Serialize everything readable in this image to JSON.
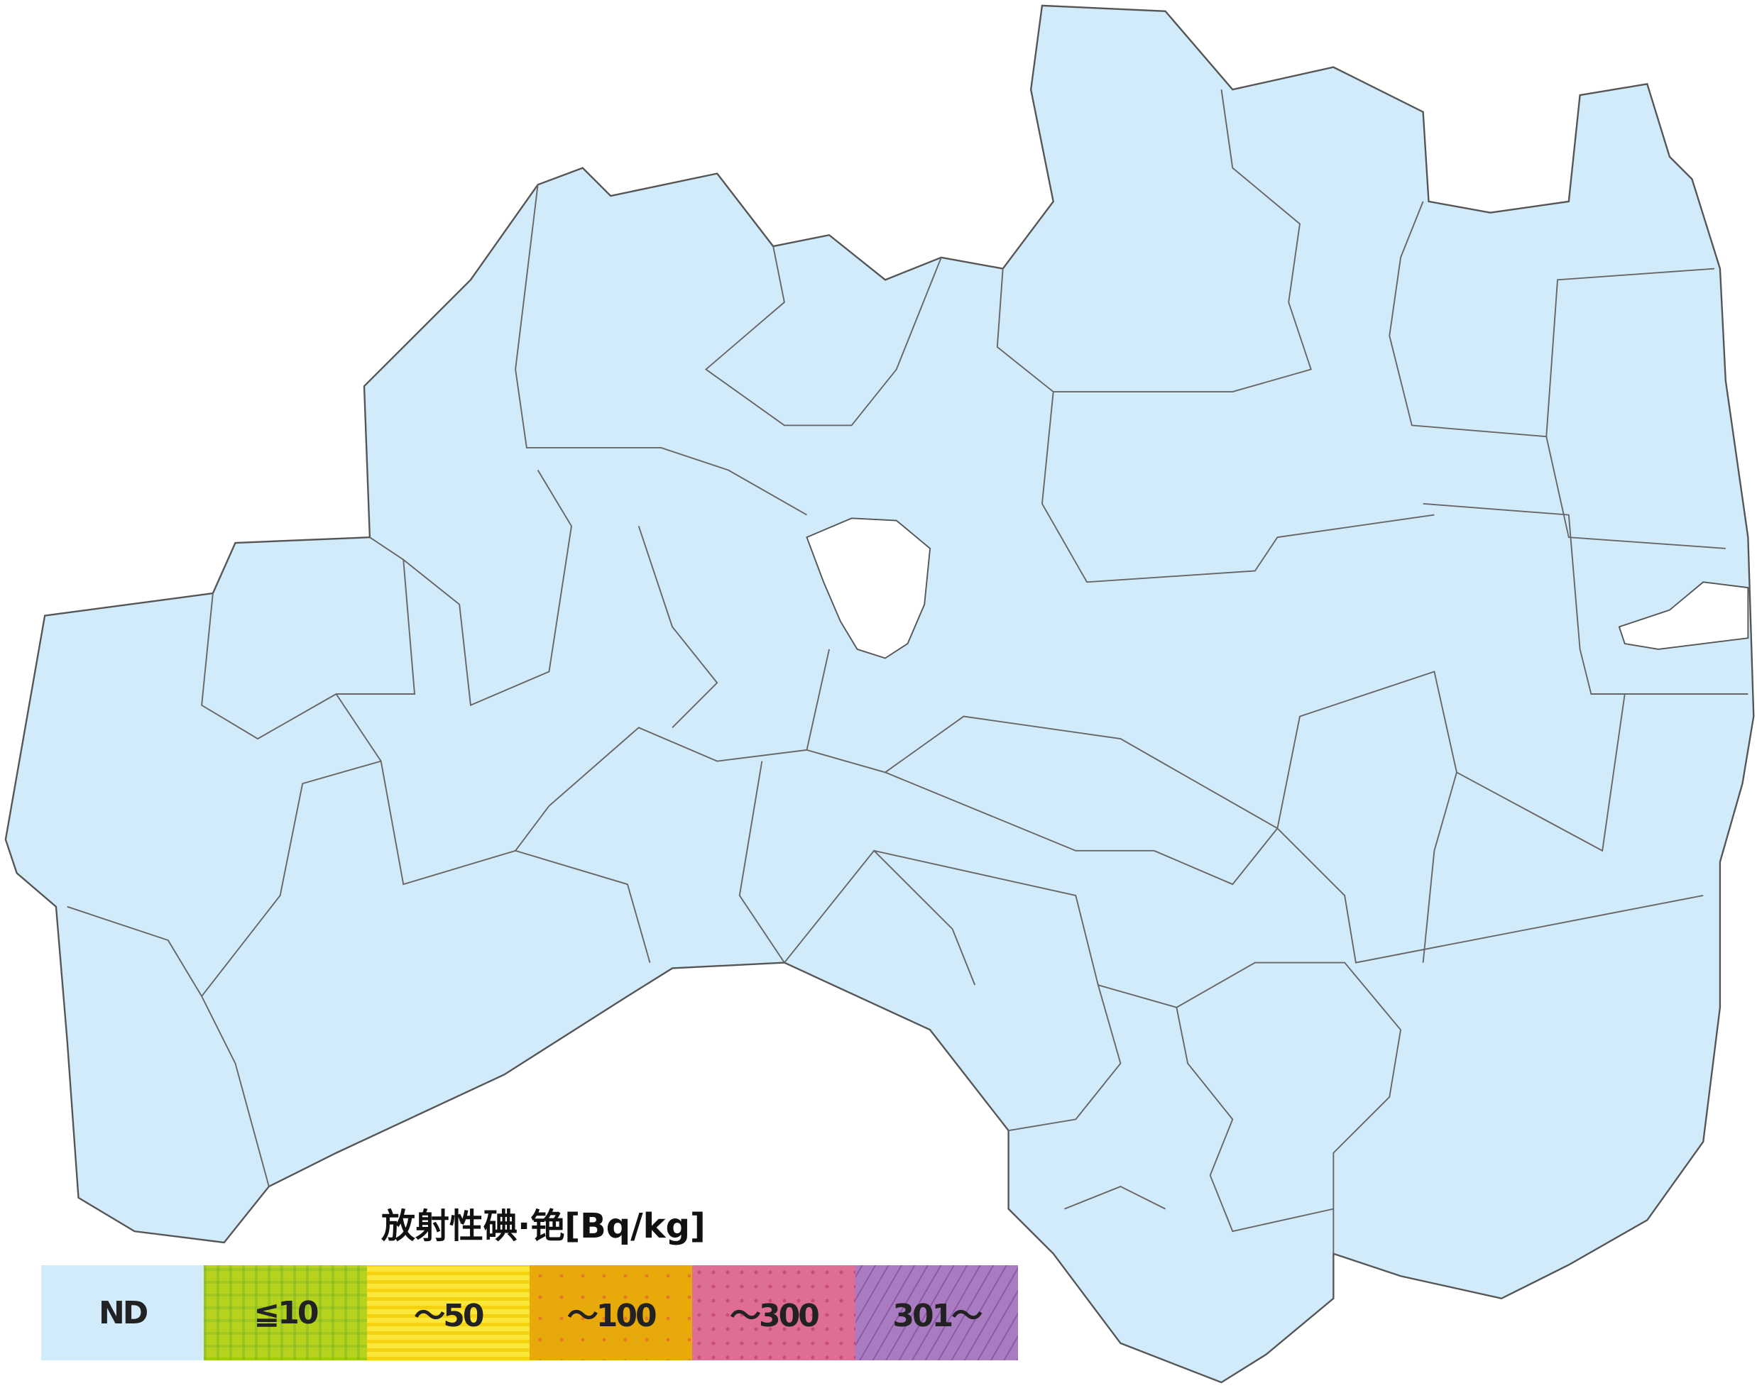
{
  "map": {
    "region_fill": "#d2ebfa",
    "border_color": "#555555",
    "water_fill": "#ffffff"
  },
  "legend": {
    "title": "放射性碘·铯[Bq/kg]",
    "items": [
      {
        "label": "ND",
        "color": "#d2ebfa"
      },
      {
        "label": "≦10",
        "color": "#b7d21d"
      },
      {
        "label": "～50",
        "color": "#fbe73a"
      },
      {
        "label": "～100",
        "color": "#e8a90a"
      },
      {
        "label": "～300",
        "color": "#de6e95"
      },
      {
        "label": "301～",
        "color": "#a97bc0"
      }
    ]
  }
}
